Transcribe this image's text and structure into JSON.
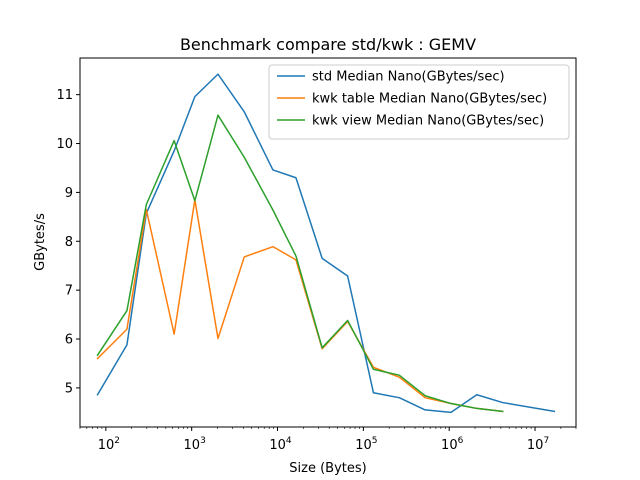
{
  "chart_data": {
    "type": "line",
    "title": "Benchmark compare std/kwk : GEMV",
    "xlabel": "Size (Bytes)",
    "ylabel": "GBytes/s",
    "xscale": "log",
    "xlim": [
      50,
      30000000
    ],
    "ylim": [
      4.2,
      11.75
    ],
    "xticks": [
      {
        "value": 100,
        "base": "10",
        "exp": "2"
      },
      {
        "value": 1000,
        "base": "10",
        "exp": "3"
      },
      {
        "value": 10000,
        "base": "10",
        "exp": "4"
      },
      {
        "value": 100000,
        "base": "10",
        "exp": "5"
      },
      {
        "value": 1000000,
        "base": "10",
        "exp": "6"
      },
      {
        "value": 10000000,
        "base": "10",
        "exp": "7"
      }
    ],
    "yticks": [
      {
        "value": 5,
        "label": "5"
      },
      {
        "value": 6,
        "label": "6"
      },
      {
        "value": 7,
        "label": "7"
      },
      {
        "value": 8,
        "label": "8"
      },
      {
        "value": 9,
        "label": "9"
      },
      {
        "value": 10,
        "label": "10"
      },
      {
        "value": 11,
        "label": "11"
      }
    ],
    "grid": false,
    "legend_position": "top-right",
    "series": [
      {
        "name": "std Median Nano(GBytes/sec)",
        "color": "#1f77b4",
        "x": [
          80,
          176,
          296,
          625,
          1089,
          2025,
          4096,
          8836,
          16384,
          33124,
          65536,
          131044,
          262144,
          524176,
          1048576,
          2096704,
          4194304,
          16777216
        ],
        "y": [
          4.86,
          5.88,
          8.57,
          9.85,
          10.96,
          11.42,
          10.65,
          9.46,
          9.3,
          7.65,
          7.29,
          4.9,
          4.8,
          4.55,
          4.5,
          4.86,
          4.7,
          4.52
        ]
      },
      {
        "name": "kwk table Median Nano(GBytes/sec)",
        "color": "#ff7f0e",
        "x": [
          80,
          176,
          296,
          625,
          1089,
          2025,
          4096,
          8836,
          16384,
          33124,
          65536,
          131044,
          262144,
          524176,
          1048576,
          2096704,
          4194304
        ],
        "y": [
          5.6,
          6.2,
          8.65,
          6.1,
          8.85,
          6.01,
          7.68,
          7.89,
          7.62,
          5.8,
          6.36,
          5.42,
          5.22,
          4.8,
          4.68,
          4.58,
          4.52
        ]
      },
      {
        "name": "kwk view Median Nano(GBytes/sec)",
        "color": "#2ca02c",
        "x": [
          80,
          176,
          296,
          625,
          1089,
          2025,
          4096,
          8836,
          16384,
          33124,
          65536,
          131044,
          262144,
          524176,
          1048576,
          2096704,
          4194304
        ],
        "y": [
          5.67,
          6.58,
          8.75,
          10.06,
          8.83,
          10.58,
          9.72,
          8.64,
          7.7,
          5.82,
          6.38,
          5.38,
          5.26,
          4.84,
          4.68,
          4.58,
          4.52
        ]
      }
    ]
  }
}
